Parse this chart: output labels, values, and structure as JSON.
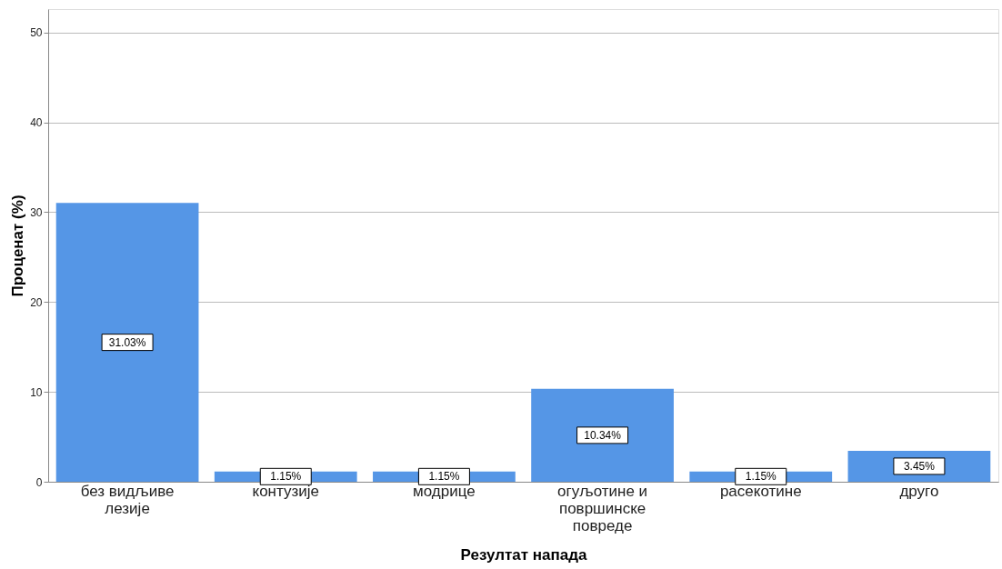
{
  "chart_data": {
    "type": "bar",
    "xlabel": "Резултат напада",
    "ylabel": "Проценат (%)",
    "categories": [
      "без видљиве лезије",
      "контузије",
      "модрице",
      "огуљотине и површинске повреде",
      "расекотине",
      "друго"
    ],
    "values": [
      31.03,
      1.15,
      1.15,
      10.34,
      1.15,
      3.45
    ],
    "value_labels": [
      "31.03%",
      "1.15%",
      "1.15%",
      "10.34%",
      "1.15%",
      "3.45%"
    ],
    "color": "#5596e6",
    "ylim": [
      0,
      52.6
    ],
    "yticks": [
      0,
      10,
      20,
      30,
      40,
      50
    ],
    "grid": "y"
  }
}
